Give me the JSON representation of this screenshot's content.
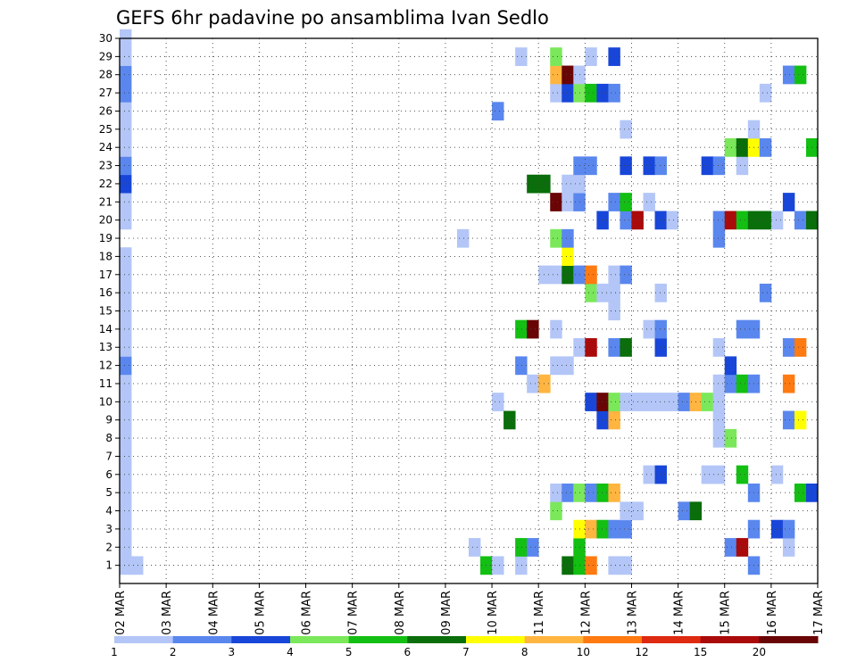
{
  "chart_data": {
    "type": "heatmap",
    "title": "GEFS 6hr padavine po ansamblima Ivan Sedlo",
    "xlabel": "",
    "ylabel": "",
    "x_ticks": [
      "02 MAR",
      "03 MAR",
      "04 MAR",
      "05 MAR",
      "06 MAR",
      "07 MAR",
      "08 MAR",
      "09 MAR",
      "10 MAR",
      "11 MAR",
      "12 MAR",
      "13 MAR",
      "14 MAR",
      "15 MAR",
      "16 MAR",
      "17 MAR"
    ],
    "y_ticks": [
      "1",
      "2",
      "3",
      "4",
      "5",
      "6",
      "7",
      "8",
      "9",
      "10",
      "11",
      "12",
      "13",
      "14",
      "15",
      "16",
      "17",
      "18",
      "19",
      "20",
      "21",
      "22",
      "23",
      "24",
      "25",
      "26",
      "27",
      "28",
      "29",
      "30"
    ],
    "ylim": [
      0,
      30
    ],
    "grid": true,
    "time_step_hours": 6,
    "colorbar": {
      "labels": [
        "1",
        "2",
        "3",
        "4",
        "5",
        "6",
        "7",
        "8",
        "10",
        "12",
        "15",
        "20"
      ],
      "colors": [
        "#b3c6f7",
        "#5a87ee",
        "#1846d8",
        "#7ae85a",
        "#13bf13",
        "#0a6e0a",
        "#ffff00",
        "#ffb540",
        "#ff7a10",
        "#dd2a10",
        "#aa0a0a",
        "#6a0505"
      ]
    },
    "cells": [
      {
        "x": "02 MAR 00",
        "series": "1",
        "value": 1
      },
      {
        "x": "02 MAR 00",
        "series": "2",
        "value": 1
      },
      {
        "x": "02 MAR 00",
        "series": "3",
        "value": 1
      },
      {
        "x": "02 MAR 00",
        "series": "4",
        "value": 1
      },
      {
        "x": "02 MAR 00",
        "series": "5",
        "value": 1
      },
      {
        "x": "02 MAR 00",
        "series": "6",
        "value": 1
      },
      {
        "x": "02 MAR 00",
        "series": "7",
        "value": 1
      },
      {
        "x": "02 MAR 00",
        "series": "8",
        "value": 1
      },
      {
        "x": "02 MAR 00",
        "series": "9",
        "value": 1
      },
      {
        "x": "02 MAR 00",
        "series": "10",
        "value": 1
      },
      {
        "x": "02 MAR 00",
        "series": "11",
        "value": 1
      },
      {
        "x": "02 MAR 00",
        "series": "12",
        "value": 2
      },
      {
        "x": "02 MAR 00",
        "series": "13",
        "value": 1
      },
      {
        "x": "02 MAR 00",
        "series": "14",
        "value": 1
      },
      {
        "x": "02 MAR 00",
        "series": "15",
        "value": 1
      },
      {
        "x": "02 MAR 00",
        "series": "16",
        "value": 1
      },
      {
        "x": "02 MAR 00",
        "series": "17",
        "value": 1
      },
      {
        "x": "02 MAR 00",
        "series": "18",
        "value": 1
      },
      {
        "x": "02 MAR 00",
        "series": "20",
        "value": 1
      },
      {
        "x": "02 MAR 00",
        "series": "21",
        "value": 1
      },
      {
        "x": "02 MAR 00",
        "series": "22",
        "value": 3
      },
      {
        "x": "02 MAR 00",
        "series": "23",
        "value": 2
      },
      {
        "x": "02 MAR 00",
        "series": "24",
        "value": 1
      },
      {
        "x": "02 MAR 00",
        "series": "25",
        "value": 1
      },
      {
        "x": "02 MAR 00",
        "series": "26",
        "value": 1
      },
      {
        "x": "02 MAR 00",
        "series": "27",
        "value": 2
      },
      {
        "x": "02 MAR 00",
        "series": "28",
        "value": 2
      },
      {
        "x": "02 MAR 00",
        "series": "29",
        "value": 1
      },
      {
        "x": "02 MAR 00",
        "series": "30",
        "value": 1
      },
      {
        "x": "02 MAR 06",
        "series": "1",
        "value": 1
      },
      {
        "x": "09 MAR 06",
        "series": "19",
        "value": 1
      },
      {
        "x": "09 MAR 12",
        "series": "2",
        "value": 1
      },
      {
        "x": "09 MAR 18",
        "series": "1",
        "value": 5
      },
      {
        "x": "10 MAR 00",
        "series": "1",
        "value": 1
      },
      {
        "x": "10 MAR 00",
        "series": "10",
        "value": 1
      },
      {
        "x": "10 MAR 00",
        "series": "26",
        "value": 2
      },
      {
        "x": "10 MAR 06",
        "series": "9",
        "value": 6
      },
      {
        "x": "10 MAR 12",
        "series": "1",
        "value": 1
      },
      {
        "x": "10 MAR 12",
        "series": "2",
        "value": 5
      },
      {
        "x": "10 MAR 12",
        "series": "12",
        "value": 2
      },
      {
        "x": "10 MAR 12",
        "series": "14",
        "value": 5
      },
      {
        "x": "10 MAR 12",
        "series": "29",
        "value": 1
      },
      {
        "x": "10 MAR 18",
        "series": "2",
        "value": 2
      },
      {
        "x": "10 MAR 18",
        "series": "11",
        "value": 1
      },
      {
        "x": "10 MAR 18",
        "series": "14",
        "value": 20
      },
      {
        "x": "10 MAR 18",
        "series": "22",
        "value": 6
      },
      {
        "x": "11 MAR 00",
        "series": "11",
        "value": 8
      },
      {
        "x": "11 MAR 00",
        "series": "17",
        "value": 1
      },
      {
        "x": "11 MAR 00",
        "series": "22",
        "value": 6
      },
      {
        "x": "11 MAR 06",
        "series": "4",
        "value": 4
      },
      {
        "x": "11 MAR 06",
        "series": "5",
        "value": 1
      },
      {
        "x": "11 MAR 06",
        "series": "12",
        "value": 1
      },
      {
        "x": "11 MAR 06",
        "series": "14",
        "value": 1
      },
      {
        "x": "11 MAR 06",
        "series": "17",
        "value": 1
      },
      {
        "x": "11 MAR 06",
        "series": "19",
        "value": 4
      },
      {
        "x": "11 MAR 06",
        "series": "21",
        "value": 20
      },
      {
        "x": "11 MAR 06",
        "series": "27",
        "value": 1
      },
      {
        "x": "11 MAR 06",
        "series": "28",
        "value": 8
      },
      {
        "x": "11 MAR 06",
        "series": "29",
        "value": 4
      },
      {
        "x": "11 MAR 12",
        "series": "1",
        "value": 6
      },
      {
        "x": "11 MAR 12",
        "series": "5",
        "value": 2
      },
      {
        "x": "11 MAR 12",
        "series": "12",
        "value": 1
      },
      {
        "x": "11 MAR 12",
        "series": "17",
        "value": 6
      },
      {
        "x": "11 MAR 12",
        "series": "18",
        "value": 7
      },
      {
        "x": "11 MAR 12",
        "series": "19",
        "value": 2
      },
      {
        "x": "11 MAR 12",
        "series": "21",
        "value": 1
      },
      {
        "x": "11 MAR 12",
        "series": "22",
        "value": 1
      },
      {
        "x": "11 MAR 12",
        "series": "27",
        "value": 3
      },
      {
        "x": "11 MAR 12",
        "series": "28",
        "value": 20
      },
      {
        "x": "11 MAR 18",
        "series": "1",
        "value": 5
      },
      {
        "x": "11 MAR 18",
        "series": "2",
        "value": 5
      },
      {
        "x": "11 MAR 18",
        "series": "3",
        "value": 7
      },
      {
        "x": "11 MAR 18",
        "series": "5",
        "value": 4
      },
      {
        "x": "11 MAR 18",
        "series": "13",
        "value": 1
      },
      {
        "x": "11 MAR 18",
        "series": "17",
        "value": 2
      },
      {
        "x": "11 MAR 18",
        "series": "21",
        "value": 2
      },
      {
        "x": "11 MAR 18",
        "series": "22",
        "value": 1
      },
      {
        "x": "11 MAR 18",
        "series": "23",
        "value": 2
      },
      {
        "x": "11 MAR 18",
        "series": "27",
        "value": 4
      },
      {
        "x": "11 MAR 18",
        "series": "28",
        "value": 1
      },
      {
        "x": "12 MAR 00",
        "series": "1",
        "value": 10
      },
      {
        "x": "12 MAR 00",
        "series": "3",
        "value": 8
      },
      {
        "x": "12 MAR 00",
        "series": "5",
        "value": 2
      },
      {
        "x": "12 MAR 00",
        "series": "10",
        "value": 3
      },
      {
        "x": "12 MAR 00",
        "series": "13",
        "value": 15
      },
      {
        "x": "12 MAR 00",
        "series": "16",
        "value": 4
      },
      {
        "x": "12 MAR 00",
        "series": "17",
        "value": 10
      },
      {
        "x": "12 MAR 00",
        "series": "23",
        "value": 2
      },
      {
        "x": "12 MAR 00",
        "series": "27",
        "value": 5
      },
      {
        "x": "12 MAR 00",
        "series": "29",
        "value": 1
      },
      {
        "x": "12 MAR 06",
        "series": "3",
        "value": 5
      },
      {
        "x": "12 MAR 06",
        "series": "5",
        "value": 5
      },
      {
        "x": "12 MAR 06",
        "series": "9",
        "value": 3
      },
      {
        "x": "12 MAR 06",
        "series": "10",
        "value": 20
      },
      {
        "x": "12 MAR 06",
        "series": "16",
        "value": 1
      },
      {
        "x": "12 MAR 06",
        "series": "20",
        "value": 3
      },
      {
        "x": "12 MAR 06",
        "series": "27",
        "value": 3
      },
      {
        "x": "12 MAR 12",
        "series": "1",
        "value": 1
      },
      {
        "x": "12 MAR 12",
        "series": "3",
        "value": 2
      },
      {
        "x": "12 MAR 12",
        "series": "5",
        "value": 8
      },
      {
        "x": "12 MAR 12",
        "series": "9",
        "value": 8
      },
      {
        "x": "12 MAR 12",
        "series": "10",
        "value": 4
      },
      {
        "x": "12 MAR 12",
        "series": "13",
        "value": 2
      },
      {
        "x": "12 MAR 12",
        "series": "15",
        "value": 1
      },
      {
        "x": "12 MAR 12",
        "series": "16",
        "value": 1
      },
      {
        "x": "12 MAR 12",
        "series": "17",
        "value": 1
      },
      {
        "x": "12 MAR 12",
        "series": "21",
        "value": 2
      },
      {
        "x": "12 MAR 12",
        "series": "27",
        "value": 2
      },
      {
        "x": "12 MAR 12",
        "series": "29",
        "value": 3
      },
      {
        "x": "12 MAR 18",
        "series": "1",
        "value": 1
      },
      {
        "x": "12 MAR 18",
        "series": "3",
        "value": 2
      },
      {
        "x": "12 MAR 18",
        "series": "4",
        "value": 1
      },
      {
        "x": "12 MAR 18",
        "series": "10",
        "value": 1
      },
      {
        "x": "12 MAR 18",
        "series": "13",
        "value": 6
      },
      {
        "x": "12 MAR 18",
        "series": "17",
        "value": 2
      },
      {
        "x": "12 MAR 18",
        "series": "20",
        "value": 2
      },
      {
        "x": "12 MAR 18",
        "series": "21",
        "value": 5
      },
      {
        "x": "12 MAR 18",
        "series": "23",
        "value": 3
      },
      {
        "x": "12 MAR 18",
        "series": "25",
        "value": 1
      },
      {
        "x": "13 MAR 00",
        "series": "4",
        "value": 1
      },
      {
        "x": "13 MAR 00",
        "series": "10",
        "value": 1
      },
      {
        "x": "13 MAR 00",
        "series": "20",
        "value": 15
      },
      {
        "x": "13 MAR 06",
        "series": "10",
        "value": 1
      },
      {
        "x": "13 MAR 06",
        "series": "14",
        "value": 1
      },
      {
        "x": "13 MAR 06",
        "series": "21",
        "value": 1
      },
      {
        "x": "13 MAR 06",
        "series": "23",
        "value": 3
      },
      {
        "x": "13 MAR 06",
        "series": "6",
        "value": 1
      },
      {
        "x": "13 MAR 12",
        "series": "6",
        "value": 3
      },
      {
        "x": "13 MAR 12",
        "series": "10",
        "value": 1
      },
      {
        "x": "13 MAR 12",
        "series": "13",
        "value": 3
      },
      {
        "x": "13 MAR 12",
        "series": "14",
        "value": 2
      },
      {
        "x": "13 MAR 12",
        "series": "16",
        "value": 1
      },
      {
        "x": "13 MAR 12",
        "series": "20",
        "value": 3
      },
      {
        "x": "13 MAR 12",
        "series": "23",
        "value": 2
      },
      {
        "x": "13 MAR 18",
        "series": "10",
        "value": 1
      },
      {
        "x": "13 MAR 18",
        "series": "20",
        "value": 1
      },
      {
        "x": "14 MAR 00",
        "series": "4",
        "value": 2
      },
      {
        "x": "14 MAR 00",
        "series": "10",
        "value": 2
      },
      {
        "x": "14 MAR 06",
        "series": "4",
        "value": 6
      },
      {
        "x": "14 MAR 06",
        "series": "10",
        "value": 8
      },
      {
        "x": "14 MAR 12",
        "series": "6",
        "value": 1
      },
      {
        "x": "14 MAR 12",
        "series": "10",
        "value": 4
      },
      {
        "x": "14 MAR 12",
        "series": "23",
        "value": 3
      },
      {
        "x": "14 MAR 18",
        "series": "6",
        "value": 1
      },
      {
        "x": "14 MAR 18",
        "series": "8",
        "value": 1
      },
      {
        "x": "14 MAR 18",
        "series": "9",
        "value": 1
      },
      {
        "x": "14 MAR 18",
        "series": "10",
        "value": 1
      },
      {
        "x": "14 MAR 18",
        "series": "11",
        "value": 1
      },
      {
        "x": "14 MAR 18",
        "series": "13",
        "value": 1
      },
      {
        "x": "14 MAR 18",
        "series": "19",
        "value": 2
      },
      {
        "x": "14 MAR 18",
        "series": "20",
        "value": 2
      },
      {
        "x": "14 MAR 18",
        "series": "23",
        "value": 2
      },
      {
        "x": "15 MAR 00",
        "series": "2",
        "value": 2
      },
      {
        "x": "15 MAR 00",
        "series": "8",
        "value": 4
      },
      {
        "x": "15 MAR 00",
        "series": "11",
        "value": 2
      },
      {
        "x": "15 MAR 00",
        "series": "12",
        "value": 3
      },
      {
        "x": "15 MAR 00",
        "series": "20",
        "value": 15
      },
      {
        "x": "15 MAR 00",
        "series": "24",
        "value": 4
      },
      {
        "x": "15 MAR 06",
        "series": "2",
        "value": 15
      },
      {
        "x": "15 MAR 06",
        "series": "6",
        "value": 5
      },
      {
        "x": "15 MAR 06",
        "series": "11",
        "value": 5
      },
      {
        "x": "15 MAR 06",
        "series": "14",
        "value": 2
      },
      {
        "x": "15 MAR 06",
        "series": "20",
        "value": 5
      },
      {
        "x": "15 MAR 06",
        "series": "23",
        "value": 1
      },
      {
        "x": "15 MAR 06",
        "series": "24",
        "value": 6
      },
      {
        "x": "15 MAR 12",
        "series": "1",
        "value": 2
      },
      {
        "x": "15 MAR 12",
        "series": "3",
        "value": 2
      },
      {
        "x": "15 MAR 12",
        "series": "5",
        "value": 2
      },
      {
        "x": "15 MAR 12",
        "series": "11",
        "value": 2
      },
      {
        "x": "15 MAR 12",
        "series": "14",
        "value": 2
      },
      {
        "x": "15 MAR 12",
        "series": "20",
        "value": 6
      },
      {
        "x": "15 MAR 12",
        "series": "24",
        "value": 7
      },
      {
        "x": "15 MAR 12",
        "series": "25",
        "value": 1
      },
      {
        "x": "15 MAR 18",
        "series": "16",
        "value": 2
      },
      {
        "x": "15 MAR 18",
        "series": "20",
        "value": 6
      },
      {
        "x": "15 MAR 18",
        "series": "27",
        "value": 1
      },
      {
        "x": "15 MAR 18",
        "series": "24",
        "value": 2
      },
      {
        "x": "16 MAR 00",
        "series": "3",
        "value": 3
      },
      {
        "x": "16 MAR 00",
        "series": "6",
        "value": 1
      },
      {
        "x": "16 MAR 00",
        "series": "20",
        "value": 1
      },
      {
        "x": "16 MAR 06",
        "series": "2",
        "value": 1
      },
      {
        "x": "16 MAR 06",
        "series": "3",
        "value": 2
      },
      {
        "x": "16 MAR 06",
        "series": "9",
        "value": 2
      },
      {
        "x": "16 MAR 06",
        "series": "11",
        "value": 10
      },
      {
        "x": "16 MAR 06",
        "series": "13",
        "value": 2
      },
      {
        "x": "16 MAR 06",
        "series": "21",
        "value": 3
      },
      {
        "x": "16 MAR 06",
        "series": "28",
        "value": 2
      },
      {
        "x": "16 MAR 12",
        "series": "5",
        "value": 5
      },
      {
        "x": "16 MAR 12",
        "series": "9",
        "value": 7
      },
      {
        "x": "16 MAR 12",
        "series": "13",
        "value": 10
      },
      {
        "x": "16 MAR 12",
        "series": "20",
        "value": 2
      },
      {
        "x": "16 MAR 12",
        "series": "28",
        "value": 5
      },
      {
        "x": "16 MAR 18",
        "series": "5",
        "value": 3
      },
      {
        "x": "16 MAR 18",
        "series": "20",
        "value": 6
      },
      {
        "x": "16 MAR 18",
        "series": "24",
        "value": 5
      }
    ]
  }
}
